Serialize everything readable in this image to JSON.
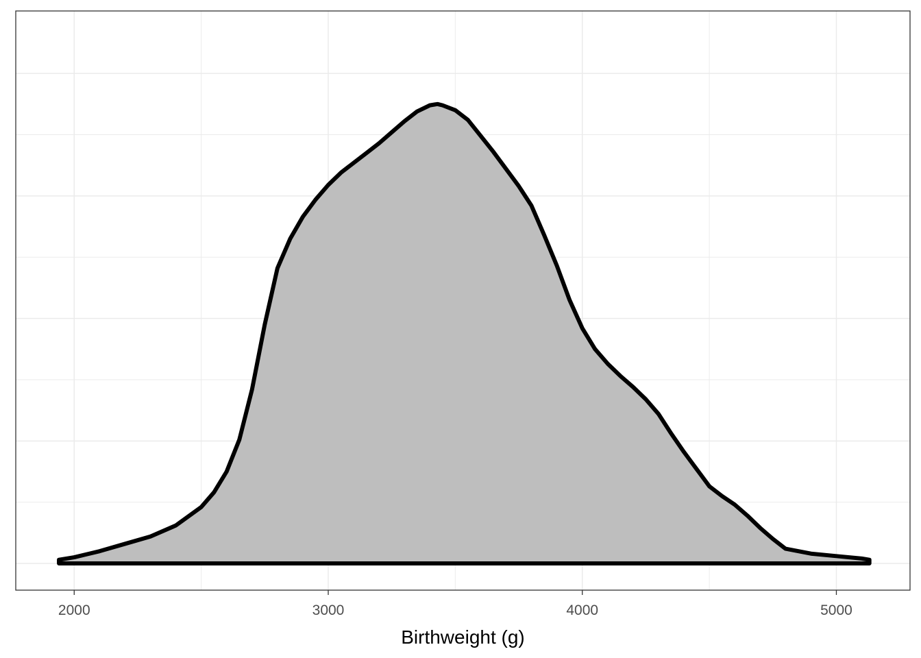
{
  "chart_data": {
    "type": "area",
    "subtype": "density",
    "title": "",
    "xlabel": "Birthweight (g)",
    "ylabel": "",
    "xlim": [
      1770,
      5290
    ],
    "ylim": [
      -2.18e-05,
      0.000451
    ],
    "x_ticks": [
      2000,
      3000,
      4000,
      5000
    ],
    "x_tick_labels": [
      "2000",
      "3000",
      "4000",
      "5000"
    ],
    "y_gridlines": [
      0,
      5e-05,
      0.0001,
      0.00015,
      0.0002,
      0.00025,
      0.0003,
      0.00035,
      0.0004
    ],
    "show_y_tick_labels": false,
    "grid": true,
    "panel_border": true,
    "fill_color": "#bebebe",
    "line_color": "#000000",
    "grid_color": "#ebebeb",
    "series": [
      {
        "x": [
          1940,
          2000,
          2100,
          2200,
          2300,
          2400,
          2500,
          2550,
          2600,
          2650,
          2700,
          2750,
          2800,
          2850,
          2900,
          2950,
          3000,
          3050,
          3100,
          3150,
          3200,
          3250,
          3300,
          3350,
          3400,
          3430,
          3450,
          3500,
          3550,
          3600,
          3650,
          3700,
          3750,
          3800,
          3850,
          3900,
          3950,
          4000,
          4050,
          4100,
          4150,
          4200,
          4250,
          4300,
          4350,
          4400,
          4450,
          4500,
          4550,
          4600,
          4650,
          4700,
          4750,
          4800,
          4900,
          5000,
          5100,
          5130
        ],
        "y": [
          3e-06,
          5e-06,
          1e-05,
          1.6e-05,
          2.2e-05,
          3.1e-05,
          4.6e-05,
          5.8e-05,
          7.5e-05,
          0.000101,
          0.000142,
          0.000195,
          0.000241,
          0.000265,
          0.000283,
          0.000297,
          0.000309,
          0.000319,
          0.000327,
          0.000335,
          0.000343,
          0.000352,
          0.000361,
          0.000369,
          0.000374,
          0.000375,
          0.000374,
          0.00037,
          0.000362,
          0.000349,
          0.000336,
          0.000322,
          0.000308,
          0.000292,
          0.000268,
          0.000243,
          0.000215,
          0.000192,
          0.000175,
          0.000163,
          0.000153,
          0.000144,
          0.000134,
          0.000122,
          0.000106,
          9.1e-05,
          7.7e-05,
          6.3e-05,
          5.5e-05,
          4.8e-05,
          3.9e-05,
          2.9e-05,
          2e-05,
          1.2e-05,
          8e-06,
          6e-06,
          4e-06,
          3e-06
        ]
      }
    ]
  }
}
